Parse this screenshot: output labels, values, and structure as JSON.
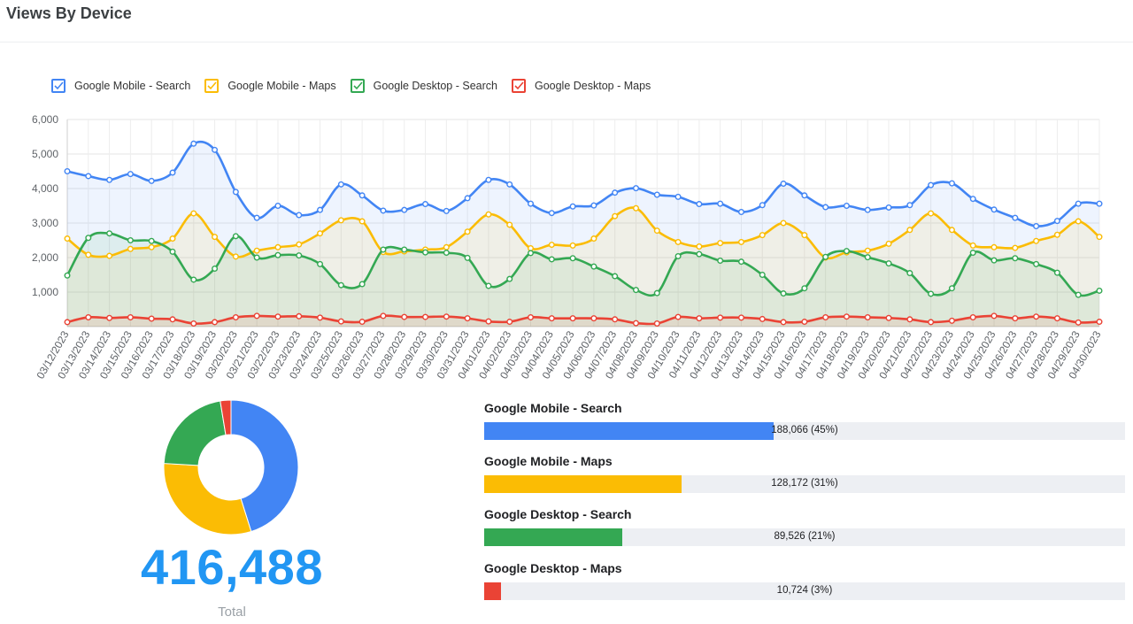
{
  "page": {
    "title": "Views By Device"
  },
  "chart_data": [
    {
      "type": "line",
      "title": "",
      "ylim": [
        0,
        6000
      ],
      "y_ticks": [
        "1,000",
        "2,000",
        "3,000",
        "4,000",
        "5,000",
        "6,000"
      ],
      "grid": true,
      "legend_position": "top-left",
      "area_fill": true,
      "x": [
        "03/12/2023",
        "03/13/2023",
        "03/14/2023",
        "03/15/2023",
        "03/16/2023",
        "03/17/2023",
        "03/18/2023",
        "03/19/2023",
        "03/20/2023",
        "03/21/2023",
        "03/22/2023",
        "03/23/2023",
        "03/24/2023",
        "03/25/2023",
        "03/26/2023",
        "03/27/2023",
        "03/28/2023",
        "03/29/2023",
        "03/30/2023",
        "03/31/2023",
        "04/01/2023",
        "04/02/2023",
        "04/03/2023",
        "04/04/2023",
        "04/05/2023",
        "04/06/2023",
        "04/07/2023",
        "04/08/2023",
        "04/09/2023",
        "04/10/2023",
        "04/11/2023",
        "04/12/2023",
        "04/13/2023",
        "04/14/2023",
        "04/15/2023",
        "04/16/2023",
        "04/17/2023",
        "04/18/2023",
        "04/19/2023",
        "04/20/2023",
        "04/21/2023",
        "04/22/2023",
        "04/23/2023",
        "04/24/2023",
        "04/25/2023",
        "04/26/2023",
        "04/27/2023",
        "04/28/2023",
        "04/29/2023",
        "04/30/2023"
      ],
      "series": [
        {
          "name": "Google Mobile - Search",
          "color": "#4285f4",
          "values": [
            4500,
            4360,
            4250,
            4420,
            4220,
            4460,
            5300,
            5120,
            3900,
            3150,
            3500,
            3230,
            3380,
            4120,
            3800,
            3360,
            3380,
            3550,
            3350,
            3720,
            4250,
            4120,
            3560,
            3290,
            3480,
            3510,
            3880,
            4010,
            3820,
            3760,
            3550,
            3560,
            3320,
            3520,
            4140,
            3800,
            3460,
            3500,
            3380,
            3450,
            3520,
            4100,
            4150,
            3700,
            3390,
            3150,
            2910,
            3060,
            3560,
            3560
          ]
        },
        {
          "name": "Google Mobile - Maps",
          "color": "#fbbc04",
          "values": [
            2550,
            2080,
            2050,
            2250,
            2300,
            2550,
            3280,
            2600,
            2030,
            2200,
            2300,
            2380,
            2700,
            3080,
            3050,
            2160,
            2180,
            2230,
            2300,
            2750,
            3250,
            2950,
            2270,
            2370,
            2350,
            2550,
            3200,
            3430,
            2780,
            2450,
            2320,
            2420,
            2450,
            2650,
            3000,
            2650,
            2000,
            2150,
            2200,
            2400,
            2800,
            3280,
            2800,
            2350,
            2300,
            2280,
            2480,
            2660,
            3050,
            2600
          ]
        },
        {
          "name": "Google Desktop - Search",
          "color": "#34a853",
          "values": [
            1480,
            2570,
            2700,
            2500,
            2480,
            2170,
            1360,
            1680,
            2620,
            2000,
            2070,
            2060,
            1810,
            1200,
            1230,
            2230,
            2230,
            2150,
            2140,
            1990,
            1180,
            1380,
            2130,
            1950,
            1980,
            1740,
            1460,
            1060,
            970,
            2040,
            2100,
            1910,
            1880,
            1500,
            960,
            1110,
            2020,
            2190,
            2010,
            1830,
            1550,
            950,
            1110,
            2140,
            1920,
            1980,
            1810,
            1560,
            920,
            1040
          ]
        },
        {
          "name": "Google Desktop - Maps",
          "color": "#ea4335",
          "values": [
            130,
            270,
            250,
            270,
            230,
            210,
            90,
            130,
            270,
            310,
            290,
            300,
            260,
            150,
            140,
            310,
            280,
            280,
            290,
            240,
            150,
            140,
            270,
            240,
            240,
            240,
            210,
            100,
            90,
            280,
            240,
            260,
            260,
            220,
            130,
            140,
            270,
            290,
            270,
            250,
            210,
            130,
            170,
            270,
            310,
            240,
            290,
            240,
            120,
            140
          ]
        }
      ]
    },
    {
      "type": "pie",
      "donut": true,
      "categories": [
        "Google Mobile - Search",
        "Google Mobile - Maps",
        "Google Desktop - Search",
        "Google Desktop - Maps"
      ],
      "values": [
        188066,
        128172,
        89526,
        10724
      ],
      "colors": [
        "#4285f4",
        "#fbbc04",
        "#34a853",
        "#ea4335"
      ],
      "total_value": "416,488",
      "total_label": "Total"
    },
    {
      "type": "bar",
      "orientation": "horizontal",
      "max": 416488,
      "items": [
        {
          "label": "Google Mobile - Search",
          "value": 188066,
          "display": "188,066 (45%)",
          "color": "#4285f4"
        },
        {
          "label": "Google Mobile - Maps",
          "value": 128172,
          "display": "128,172 (31%)",
          "color": "#fbbc04"
        },
        {
          "label": "Google Desktop - Search",
          "value": 89526,
          "display": "89,526 (21%)",
          "color": "#34a853"
        },
        {
          "label": "Google Desktop - Maps",
          "value": 10724,
          "display": "10,724 (3%)",
          "color": "#ea4335"
        }
      ]
    }
  ]
}
